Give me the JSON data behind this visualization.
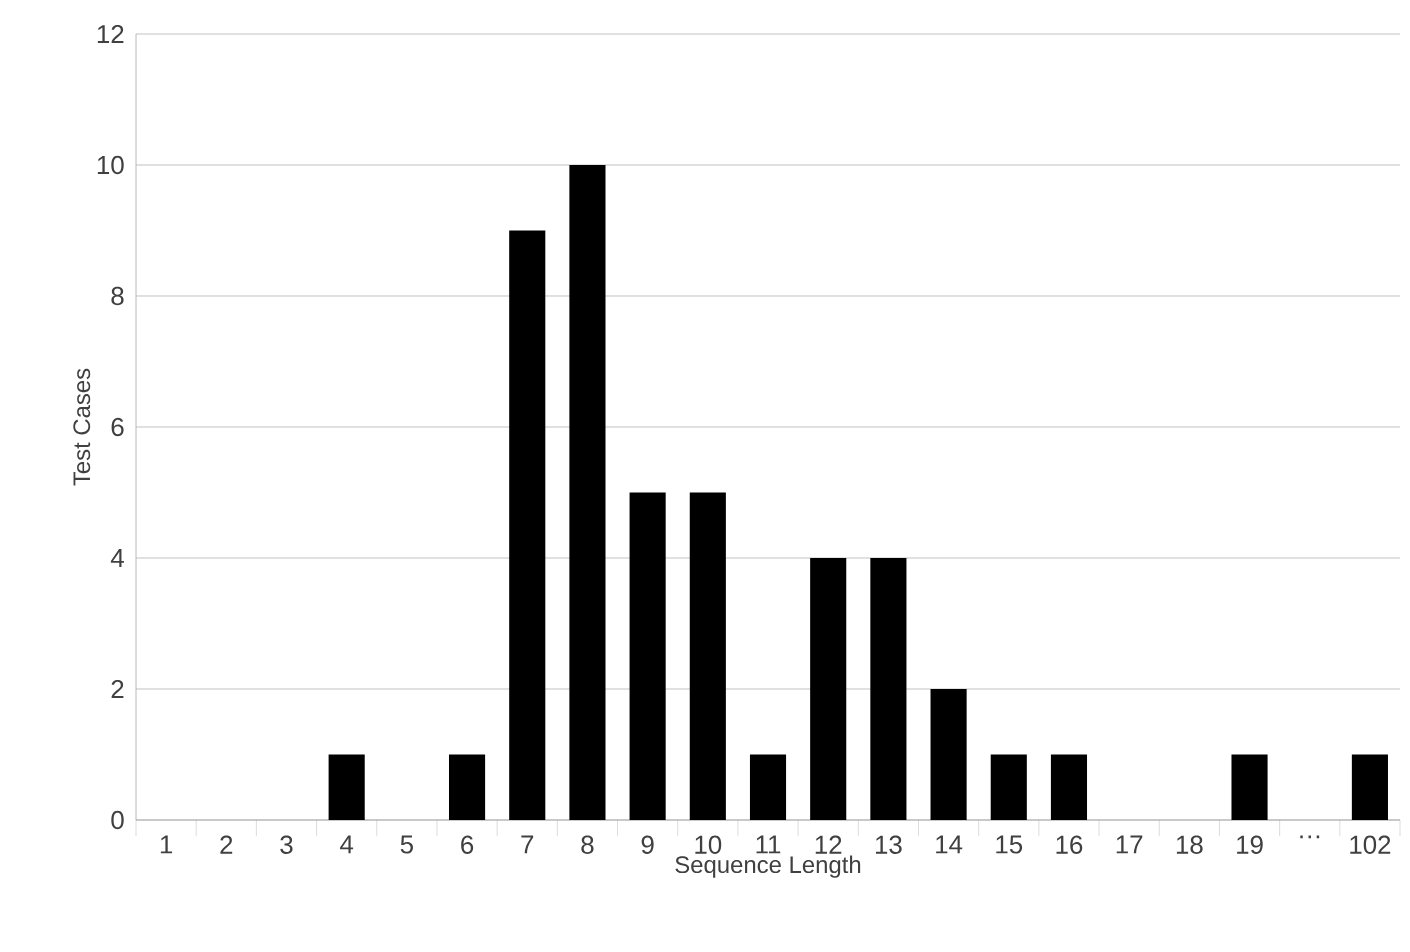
{
  "chart_data": {
    "type": "bar",
    "xlabel": "Sequence Length",
    "ylabel": "Test Cases",
    "categories": [
      "1",
      "2",
      "3",
      "4",
      "5",
      "6",
      "7",
      "8",
      "9",
      "10",
      "11",
      "12",
      "13",
      "14",
      "15",
      "16",
      "17",
      "18",
      "19",
      "…",
      "102"
    ],
    "values": [
      0,
      0,
      0,
      1,
      0,
      1,
      9,
      10,
      5,
      5,
      1,
      4,
      4,
      2,
      1,
      1,
      0,
      0,
      1,
      0,
      1
    ],
    "color": "#000000",
    "ylim": [
      0,
      12
    ],
    "yticks": [
      0,
      2,
      4,
      6,
      8,
      10,
      12
    ],
    "grid": "y"
  }
}
